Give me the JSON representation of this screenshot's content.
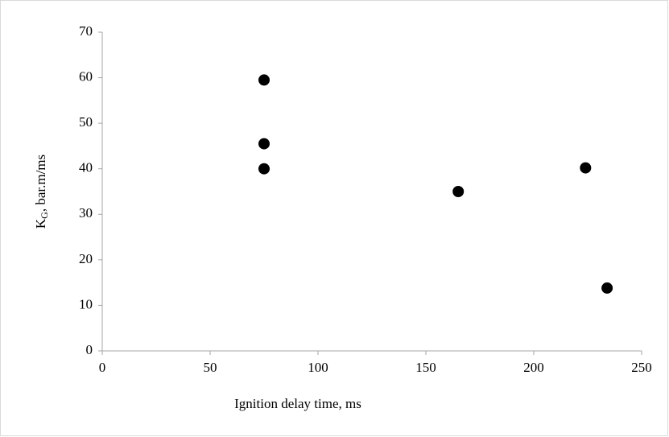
{
  "chart_data": {
    "type": "scatter",
    "xlabel": "Ignition delay time, ms",
    "ylabel": [
      "K",
      "G",
      ", bar.m/ms"
    ],
    "x": [
      75,
      75,
      75,
      165,
      224,
      234
    ],
    "values": [
      59.5,
      45.5,
      40,
      35,
      40.2,
      13.8
    ],
    "color": "#000000",
    "xlim": [
      0,
      250
    ],
    "xticks": [
      0,
      50,
      100,
      150,
      200,
      250
    ],
    "ylim": [
      0,
      70
    ],
    "yticks": [
      0,
      10,
      20,
      30,
      40,
      50,
      60,
      70
    ],
    "grid": false
  }
}
